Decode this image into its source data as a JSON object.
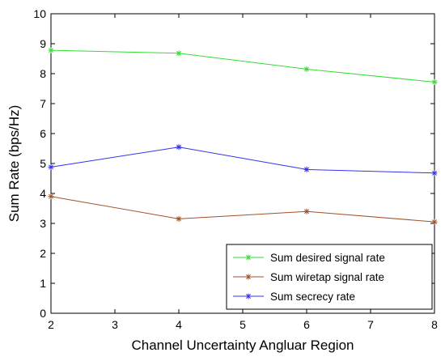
{
  "chart_data": {
    "type": "line",
    "title": "",
    "xlabel": "Channel Uncertainty Angluar Region",
    "ylabel": "Sum Rate (bps/Hz)",
    "xlim": [
      2,
      8
    ],
    "ylim": [
      0,
      10
    ],
    "xticks": [
      "2",
      "3",
      "4",
      "5",
      "6",
      "7",
      "8"
    ],
    "yticks": [
      "0",
      "1",
      "2",
      "3",
      "4",
      "5",
      "6",
      "7",
      "8",
      "9",
      "10"
    ],
    "grid": false,
    "legend_position": "bottom-right",
    "x": [
      2,
      4,
      6,
      8
    ],
    "series": [
      {
        "name": "Sum desired signal rate",
        "values": [
          8.78,
          8.68,
          8.15,
          7.72
        ],
        "color": "#33dd33",
        "marker": "asterisk"
      },
      {
        "name": "Sum wiretap signal rate",
        "values": [
          3.9,
          3.15,
          3.4,
          3.05
        ],
        "color": "#a0522d",
        "marker": "asterisk"
      },
      {
        "name": "Sum secrecy rate",
        "values": [
          4.88,
          5.55,
          4.8,
          4.68
        ],
        "color": "#3333ee",
        "marker": "asterisk"
      }
    ]
  }
}
